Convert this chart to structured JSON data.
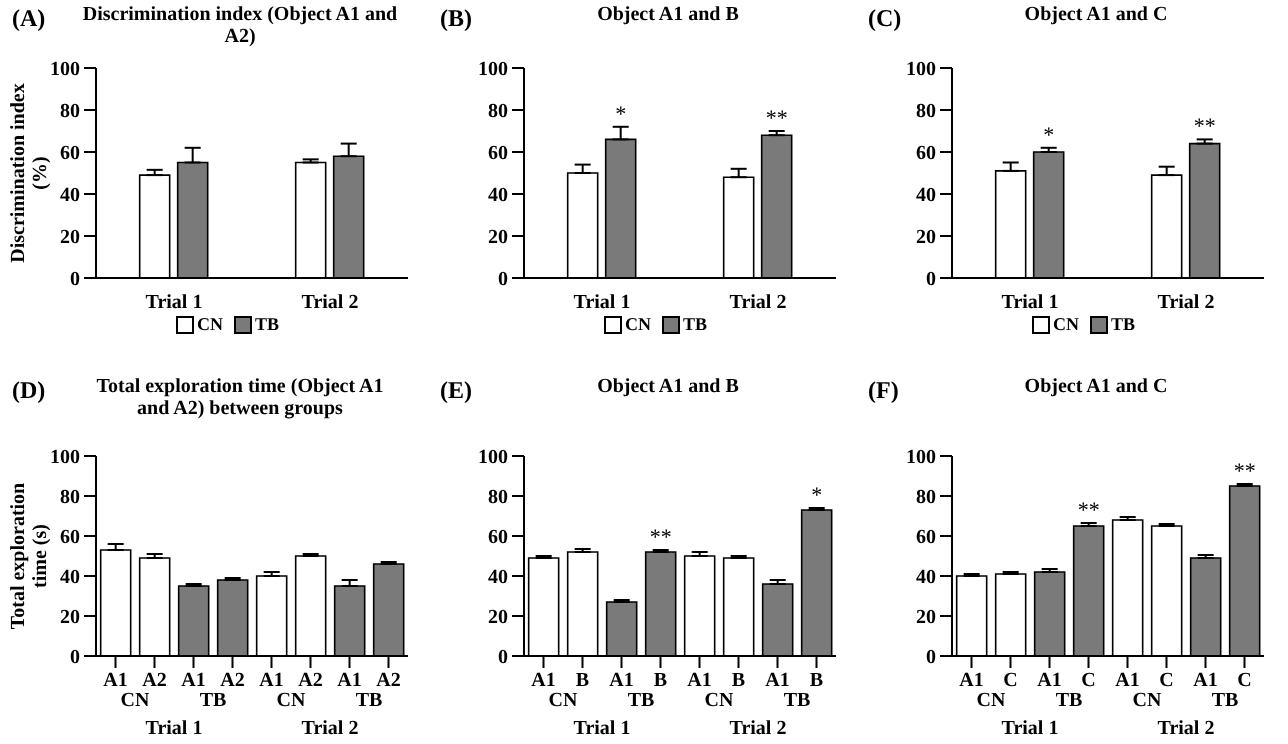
{
  "chart_data": [
    {
      "type": "bar",
      "title": "Discrimination index (Object A1 and A2)",
      "ylabel": "Discrimination index (%)",
      "categories": [
        "Trial 1",
        "Trial 2"
      ],
      "series": [
        {
          "name": "CN",
          "color": "#ffffff",
          "values": [
            49,
            55
          ],
          "errors": [
            2.5,
            1.5
          ]
        },
        {
          "name": "TB",
          "color": "#7a7a7a",
          "values": [
            55,
            58
          ],
          "errors": [
            7,
            6
          ]
        }
      ],
      "ylim": [
        0,
        100
      ],
      "yticks": [
        0,
        20,
        40,
        60,
        80,
        100
      ],
      "legend": "bottom",
      "annotations": [
        "(A)"
      ]
    },
    {
      "type": "bar",
      "title": "Object A1 and B",
      "categories": [
        "Trial 1",
        "Trial 2"
      ],
      "series": [
        {
          "name": "CN",
          "color": "#ffffff",
          "values": [
            50,
            48
          ],
          "errors": [
            4,
            4
          ]
        },
        {
          "name": "TB",
          "color": "#7a7a7a",
          "values": [
            66,
            68
          ],
          "errors": [
            6,
            2
          ],
          "value_labels": [
            "*",
            "**"
          ]
        }
      ],
      "ylim": [
        0,
        100
      ],
      "yticks": [
        0,
        20,
        40,
        60,
        80,
        100
      ],
      "legend": "bottom",
      "annotations": [
        "(B)"
      ]
    },
    {
      "type": "bar",
      "title": "Object A1 and C",
      "categories": [
        "Trial 1",
        "Trial 2"
      ],
      "series": [
        {
          "name": "CN",
          "color": "#ffffff",
          "values": [
            51,
            49
          ],
          "errors": [
            4,
            4
          ]
        },
        {
          "name": "TB",
          "color": "#7a7a7a",
          "values": [
            60,
            64
          ],
          "errors": [
            2,
            2
          ],
          "value_labels": [
            "*",
            "**"
          ]
        }
      ],
      "ylim": [
        0,
        100
      ],
      "yticks": [
        0,
        20,
        40,
        60,
        80,
        100
      ],
      "legend": "bottom",
      "annotations": [
        "(C)"
      ]
    },
    {
      "type": "bar",
      "title": "Total exploration time (Object A1 and A2) between groups",
      "ylabel": "Total exploration time (s)",
      "categories": [
        "A1",
        "A2",
        "A1",
        "A2",
        "A1",
        "A2",
        "A1",
        "A2"
      ],
      "values": [
        53,
        49,
        35,
        38,
        40,
        50,
        35,
        46
      ],
      "errors": [
        3,
        2,
        1,
        1,
        2,
        1,
        3,
        1
      ],
      "colors": [
        "#ffffff",
        "#ffffff",
        "#7a7a7a",
        "#7a7a7a",
        "#ffffff",
        "#ffffff",
        "#7a7a7a",
        "#7a7a7a"
      ],
      "ylim": [
        0,
        100
      ],
      "yticks": [
        0,
        20,
        40,
        60,
        80,
        100
      ],
      "annotations": [
        "(D)",
        "CN",
        "TB",
        "CN",
        "TB",
        "Trial 1",
        "Trial 2"
      ]
    },
    {
      "type": "bar",
      "title": "Object A1 and B",
      "categories": [
        "A1",
        "B",
        "A1",
        "B",
        "A1",
        "B",
        "A1",
        "B"
      ],
      "values": [
        49,
        52,
        27,
        52,
        50,
        49,
        36,
        73
      ],
      "errors": [
        1,
        1.5,
        1,
        1,
        2,
        1,
        2,
        1
      ],
      "colors": [
        "#ffffff",
        "#ffffff",
        "#7a7a7a",
        "#7a7a7a",
        "#ffffff",
        "#ffffff",
        "#7a7a7a",
        "#7a7a7a"
      ],
      "value_labels": [
        null,
        null,
        null,
        "**",
        null,
        null,
        null,
        "*"
      ],
      "ylim": [
        0,
        100
      ],
      "yticks": [
        0,
        20,
        40,
        60,
        80,
        100
      ],
      "annotations": [
        "(E)",
        "CN",
        "TB",
        "CN",
        "TB",
        "Trial 1",
        "Trial 2"
      ]
    },
    {
      "type": "bar",
      "title": "Object A1 and C",
      "categories": [
        "A1",
        "C",
        "A1",
        "C",
        "A1",
        "C",
        "A1",
        "C"
      ],
      "values": [
        40,
        41,
        42,
        65,
        68,
        65,
        49,
        85
      ],
      "errors": [
        1,
        1,
        1.5,
        1.5,
        1.5,
        1,
        1.5,
        1
      ],
      "colors": [
        "#ffffff",
        "#ffffff",
        "#7a7a7a",
        "#7a7a7a",
        "#ffffff",
        "#ffffff",
        "#7a7a7a",
        "#7a7a7a"
      ],
      "value_labels": [
        null,
        null,
        null,
        "**",
        null,
        null,
        null,
        "**"
      ],
      "ylim": [
        0,
        100
      ],
      "yticks": [
        0,
        20,
        40,
        60,
        80,
        100
      ],
      "annotations": [
        "(F)",
        "CN",
        "TB",
        "CN",
        "TB",
        "Trial 1",
        "Trial 2"
      ]
    }
  ]
}
